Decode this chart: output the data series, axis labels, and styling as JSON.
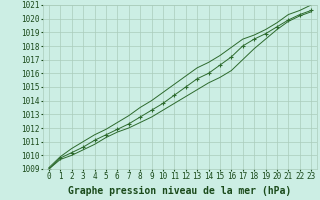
{
  "x": [
    0,
    1,
    2,
    3,
    4,
    5,
    6,
    7,
    8,
    9,
    10,
    11,
    12,
    13,
    14,
    15,
    16,
    17,
    18,
    19,
    20,
    21,
    22,
    23
  ],
  "line1": [
    1009.0,
    1009.7,
    1010.0,
    1010.4,
    1010.8,
    1011.3,
    1011.7,
    1012.0,
    1012.4,
    1012.8,
    1013.3,
    1013.8,
    1014.3,
    1014.8,
    1015.3,
    1015.7,
    1016.2,
    1017.0,
    1017.8,
    1018.5,
    1019.2,
    1019.8,
    1020.2,
    1020.5
  ],
  "line2": [
    1009.0,
    1009.8,
    1010.2,
    1010.6,
    1011.1,
    1011.5,
    1011.9,
    1012.3,
    1012.8,
    1013.3,
    1013.8,
    1014.4,
    1015.0,
    1015.6,
    1016.0,
    1016.6,
    1017.2,
    1018.0,
    1018.5,
    1018.9,
    1019.4,
    1019.9,
    1020.3,
    1020.6
  ],
  "line3": [
    1009.1,
    1009.9,
    1010.5,
    1011.0,
    1011.5,
    1011.9,
    1012.4,
    1012.9,
    1013.5,
    1014.0,
    1014.6,
    1015.2,
    1015.8,
    1016.4,
    1016.8,
    1017.3,
    1017.9,
    1018.5,
    1018.8,
    1019.2,
    1019.7,
    1020.3,
    1020.6,
    1021.0
  ],
  "ylim": [
    1009,
    1021
  ],
  "yticks": [
    1009,
    1010,
    1011,
    1012,
    1013,
    1014,
    1015,
    1016,
    1017,
    1018,
    1019,
    1020,
    1021
  ],
  "xlim": [
    0,
    23
  ],
  "xticks": [
    0,
    1,
    2,
    3,
    4,
    5,
    6,
    7,
    8,
    9,
    10,
    11,
    12,
    13,
    14,
    15,
    16,
    17,
    18,
    19,
    20,
    21,
    22,
    23
  ],
  "line_color": "#2d6a2d",
  "marker": "+",
  "marker_size": 3,
  "background_color": "#cceee4",
  "grid_color": "#aaccbb",
  "xlabel": "Graphe pression niveau de la mer (hPa)",
  "xlabel_color": "#1a4a1a",
  "tick_color": "#1a4a1a",
  "tick_fontsize": 5.5,
  "xlabel_fontsize": 7
}
